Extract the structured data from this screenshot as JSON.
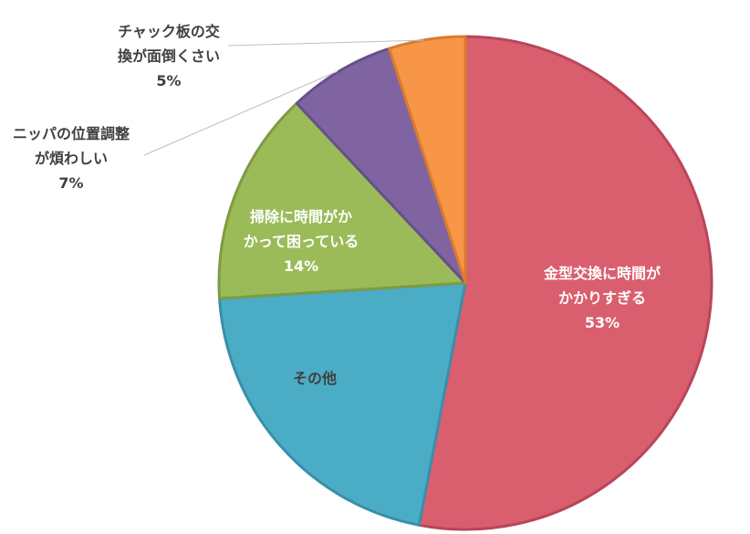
{
  "chart_data": {
    "type": "pie",
    "slices": [
      {
        "lines": [
          "金型交換に時間が",
          "かかりすぎる"
        ],
        "value_label": "53%",
        "value": 53,
        "color": "#d95f6e",
        "stroke": "#b8465a"
      },
      {
        "lines": [
          "その他"
        ],
        "value_label": "",
        "value": 21,
        "color": "#4bacc6",
        "stroke": "#3a8fa8"
      },
      {
        "lines": [
          "掃除に時間がか",
          "かって困っている"
        ],
        "value_label": "14%",
        "value": 14,
        "color": "#9bbb59",
        "stroke": "#7e9b43"
      },
      {
        "lines": [
          "ニッパの位置調整",
          "が煩わしい"
        ],
        "value_label": "7%",
        "value": 7,
        "color": "#8064a2",
        "stroke": "#66508a"
      },
      {
        "lines": [
          "チャック板の交",
          "換が面倒くさい"
        ],
        "value_label": "5%",
        "value": 5,
        "color": "#f79646",
        "stroke": "#d97b2f"
      }
    ],
    "start_angle_deg": 0,
    "direction": "clockwise",
    "leader_line_color": "#bfbfbf"
  }
}
